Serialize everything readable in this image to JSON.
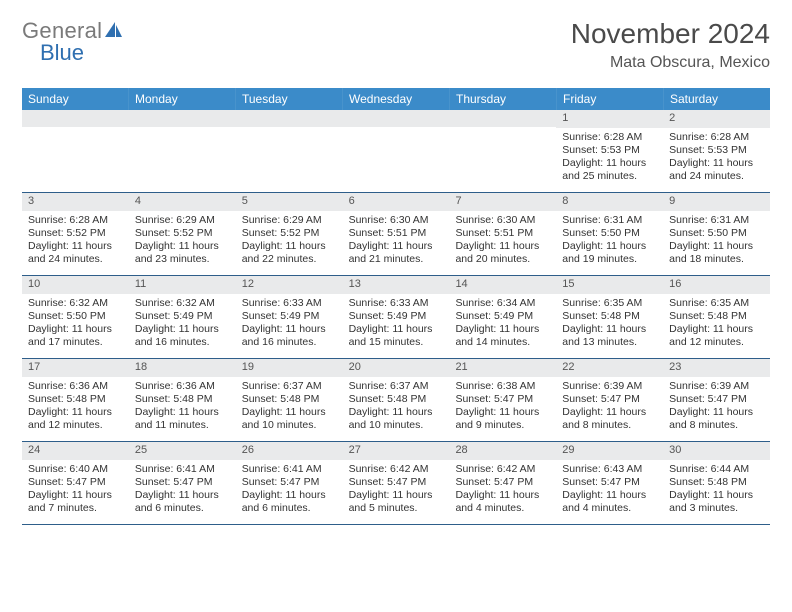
{
  "brand": {
    "part1": "General",
    "part2": "Blue"
  },
  "title": "November 2024",
  "location": "Mata Obscura, Mexico",
  "colors": {
    "header_bg": "#3b8bc9",
    "header_text": "#ffffff",
    "daynum_bg": "#e9eaeb",
    "week_divider": "#2e5e8a",
    "body_text": "#333333",
    "title_text": "#4a4a4a"
  },
  "weekdays": [
    "Sunday",
    "Monday",
    "Tuesday",
    "Wednesday",
    "Thursday",
    "Friday",
    "Saturday"
  ],
  "weeks": [
    [
      {
        "n": "",
        "sr": "",
        "ss": "",
        "dl": ""
      },
      {
        "n": "",
        "sr": "",
        "ss": "",
        "dl": ""
      },
      {
        "n": "",
        "sr": "",
        "ss": "",
        "dl": ""
      },
      {
        "n": "",
        "sr": "",
        "ss": "",
        "dl": ""
      },
      {
        "n": "",
        "sr": "",
        "ss": "",
        "dl": ""
      },
      {
        "n": "1",
        "sr": "Sunrise: 6:28 AM",
        "ss": "Sunset: 5:53 PM",
        "dl": "Daylight: 11 hours and 25 minutes."
      },
      {
        "n": "2",
        "sr": "Sunrise: 6:28 AM",
        "ss": "Sunset: 5:53 PM",
        "dl": "Daylight: 11 hours and 24 minutes."
      }
    ],
    [
      {
        "n": "3",
        "sr": "Sunrise: 6:28 AM",
        "ss": "Sunset: 5:52 PM",
        "dl": "Daylight: 11 hours and 24 minutes."
      },
      {
        "n": "4",
        "sr": "Sunrise: 6:29 AM",
        "ss": "Sunset: 5:52 PM",
        "dl": "Daylight: 11 hours and 23 minutes."
      },
      {
        "n": "5",
        "sr": "Sunrise: 6:29 AM",
        "ss": "Sunset: 5:52 PM",
        "dl": "Daylight: 11 hours and 22 minutes."
      },
      {
        "n": "6",
        "sr": "Sunrise: 6:30 AM",
        "ss": "Sunset: 5:51 PM",
        "dl": "Daylight: 11 hours and 21 minutes."
      },
      {
        "n": "7",
        "sr": "Sunrise: 6:30 AM",
        "ss": "Sunset: 5:51 PM",
        "dl": "Daylight: 11 hours and 20 minutes."
      },
      {
        "n": "8",
        "sr": "Sunrise: 6:31 AM",
        "ss": "Sunset: 5:50 PM",
        "dl": "Daylight: 11 hours and 19 minutes."
      },
      {
        "n": "9",
        "sr": "Sunrise: 6:31 AM",
        "ss": "Sunset: 5:50 PM",
        "dl": "Daylight: 11 hours and 18 minutes."
      }
    ],
    [
      {
        "n": "10",
        "sr": "Sunrise: 6:32 AM",
        "ss": "Sunset: 5:50 PM",
        "dl": "Daylight: 11 hours and 17 minutes."
      },
      {
        "n": "11",
        "sr": "Sunrise: 6:32 AM",
        "ss": "Sunset: 5:49 PM",
        "dl": "Daylight: 11 hours and 16 minutes."
      },
      {
        "n": "12",
        "sr": "Sunrise: 6:33 AM",
        "ss": "Sunset: 5:49 PM",
        "dl": "Daylight: 11 hours and 16 minutes."
      },
      {
        "n": "13",
        "sr": "Sunrise: 6:33 AM",
        "ss": "Sunset: 5:49 PM",
        "dl": "Daylight: 11 hours and 15 minutes."
      },
      {
        "n": "14",
        "sr": "Sunrise: 6:34 AM",
        "ss": "Sunset: 5:49 PM",
        "dl": "Daylight: 11 hours and 14 minutes."
      },
      {
        "n": "15",
        "sr": "Sunrise: 6:35 AM",
        "ss": "Sunset: 5:48 PM",
        "dl": "Daylight: 11 hours and 13 minutes."
      },
      {
        "n": "16",
        "sr": "Sunrise: 6:35 AM",
        "ss": "Sunset: 5:48 PM",
        "dl": "Daylight: 11 hours and 12 minutes."
      }
    ],
    [
      {
        "n": "17",
        "sr": "Sunrise: 6:36 AM",
        "ss": "Sunset: 5:48 PM",
        "dl": "Daylight: 11 hours and 12 minutes."
      },
      {
        "n": "18",
        "sr": "Sunrise: 6:36 AM",
        "ss": "Sunset: 5:48 PM",
        "dl": "Daylight: 11 hours and 11 minutes."
      },
      {
        "n": "19",
        "sr": "Sunrise: 6:37 AM",
        "ss": "Sunset: 5:48 PM",
        "dl": "Daylight: 11 hours and 10 minutes."
      },
      {
        "n": "20",
        "sr": "Sunrise: 6:37 AM",
        "ss": "Sunset: 5:48 PM",
        "dl": "Daylight: 11 hours and 10 minutes."
      },
      {
        "n": "21",
        "sr": "Sunrise: 6:38 AM",
        "ss": "Sunset: 5:47 PM",
        "dl": "Daylight: 11 hours and 9 minutes."
      },
      {
        "n": "22",
        "sr": "Sunrise: 6:39 AM",
        "ss": "Sunset: 5:47 PM",
        "dl": "Daylight: 11 hours and 8 minutes."
      },
      {
        "n": "23",
        "sr": "Sunrise: 6:39 AM",
        "ss": "Sunset: 5:47 PM",
        "dl": "Daylight: 11 hours and 8 minutes."
      }
    ],
    [
      {
        "n": "24",
        "sr": "Sunrise: 6:40 AM",
        "ss": "Sunset: 5:47 PM",
        "dl": "Daylight: 11 hours and 7 minutes."
      },
      {
        "n": "25",
        "sr": "Sunrise: 6:41 AM",
        "ss": "Sunset: 5:47 PM",
        "dl": "Daylight: 11 hours and 6 minutes."
      },
      {
        "n": "26",
        "sr": "Sunrise: 6:41 AM",
        "ss": "Sunset: 5:47 PM",
        "dl": "Daylight: 11 hours and 6 minutes."
      },
      {
        "n": "27",
        "sr": "Sunrise: 6:42 AM",
        "ss": "Sunset: 5:47 PM",
        "dl": "Daylight: 11 hours and 5 minutes."
      },
      {
        "n": "28",
        "sr": "Sunrise: 6:42 AM",
        "ss": "Sunset: 5:47 PM",
        "dl": "Daylight: 11 hours and 4 minutes."
      },
      {
        "n": "29",
        "sr": "Sunrise: 6:43 AM",
        "ss": "Sunset: 5:47 PM",
        "dl": "Daylight: 11 hours and 4 minutes."
      },
      {
        "n": "30",
        "sr": "Sunrise: 6:44 AM",
        "ss": "Sunset: 5:48 PM",
        "dl": "Daylight: 11 hours and 3 minutes."
      }
    ]
  ]
}
